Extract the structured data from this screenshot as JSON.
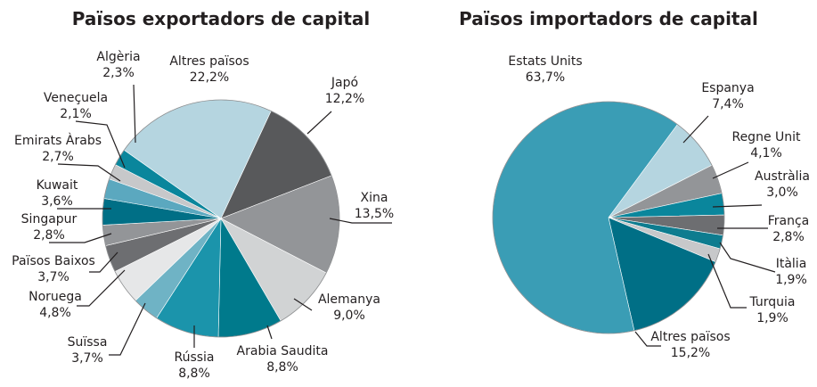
{
  "chart_data": [
    {
      "type": "pie",
      "title": "Països exportadors de capital",
      "categories": [
        "Japó",
        "Xina",
        "Alemanya",
        "Arabia Saudita",
        "Rússia",
        "Suïssa",
        "Noruega",
        "Països Baixos",
        "Singapur",
        "Kuwait",
        "Emirats Àrabs",
        "Veneçuela",
        "Algèria",
        "Altres països"
      ],
      "values": [
        12.2,
        13.5,
        9.0,
        8.8,
        8.8,
        3.7,
        4.8,
        3.7,
        2.8,
        3.6,
        2.7,
        2.1,
        2.3,
        22.2
      ],
      "value_labels": [
        "12,2%",
        "13,5%",
        "9,0%",
        "8,8%",
        "8,8%",
        "3,7%",
        "4,8%",
        "3,7%",
        "2,8%",
        "3,6%",
        "2,7%",
        "2,1%",
        "2,3%",
        "22,2%"
      ],
      "colors": [
        "#58595b",
        "#939598",
        "#d1d3d4",
        "#007a8c",
        "#1b94ab",
        "#6fb3c5",
        "#e6e7e8",
        "#6d6e71",
        "#939598",
        "#006f86",
        "#5ba8bf",
        "#c7c8ca",
        "#0a869c",
        "#b5d5e0"
      ]
    },
    {
      "type": "pie",
      "title": "Països importadors de capital",
      "categories": [
        "Espanya",
        "Regne Unit",
        "Austràlia",
        "França",
        "Itàlia",
        "Turquia",
        "Altres països",
        "Estats Units"
      ],
      "values": [
        7.4,
        4.1,
        3.0,
        2.8,
        1.9,
        1.9,
        15.2,
        63.7
      ],
      "value_labels": [
        "7,4%",
        "4,1%",
        "3,0%",
        "2,8%",
        "1,9%",
        "1,9%",
        "15,2%",
        "63,7%"
      ],
      "colors": [
        "#b5d5e0",
        "#939598",
        "#0a869c",
        "#6d6e71",
        "#0e7c8f",
        "#c7c8ca",
        "#006f86",
        "#3a9db5"
      ]
    }
  ]
}
